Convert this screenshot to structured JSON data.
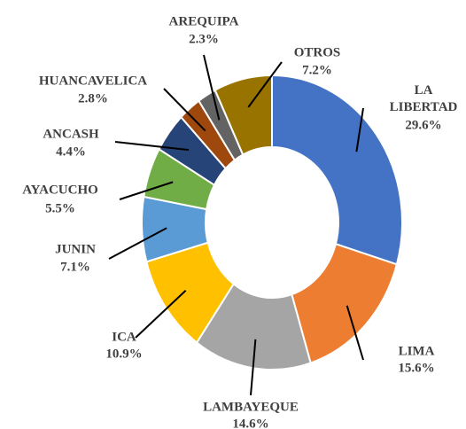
{
  "chart_data": {
    "type": "donut",
    "categories": [
      "LA LIBERTAD",
      "LIMA",
      "LAMBAYEQUE",
      "ICA",
      "JUNIN",
      "AYACUCHO",
      "ANCASH",
      "HUANCAVELICA",
      "AREQUIPA",
      "OTROS"
    ],
    "values": [
      29.6,
      15.6,
      14.6,
      10.9,
      7.1,
      5.5,
      4.4,
      2.8,
      2.3,
      7.2
    ],
    "value_labels": [
      "29.6%",
      "15.6%",
      "14.6%",
      "10.9%",
      "7.1%",
      "5.5%",
      "4.4%",
      "2.8%",
      "2.3%",
      "7.2%"
    ],
    "colors": [
      "#4472c4",
      "#ed7d31",
      "#a5a5a5",
      "#ffc000",
      "#5b9bd5",
      "#70ad47",
      "#264478",
      "#9e480e",
      "#636363",
      "#997300"
    ]
  }
}
